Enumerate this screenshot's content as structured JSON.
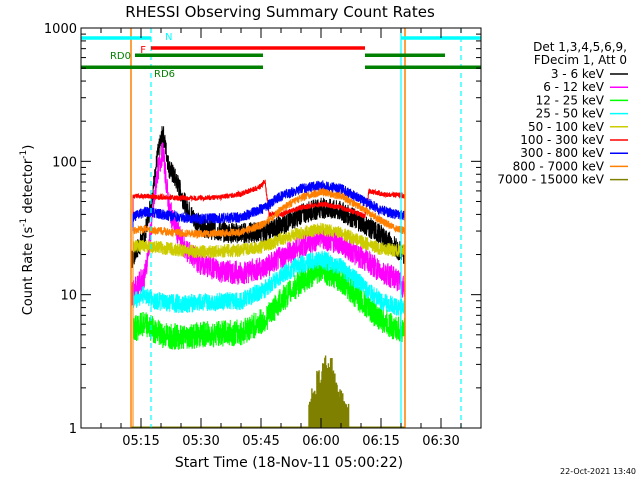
{
  "chart_data": {
    "type": "line",
    "title": "RHESSI Observing Summary Count Rates",
    "xlabel": "Start Time (18-Nov-11 05:00:22)",
    "ylabel_main": "Count Rate (s",
    "ylabel_sup": "-1",
    "ylabel_mid": " detector",
    "ylabel_end": ")",
    "yscale": "log",
    "ylim": [
      1,
      1000
    ],
    "xlim_min": [
      0,
      100
    ],
    "x_ticks": [
      {
        "min": 15,
        "label": "05:15"
      },
      {
        "min": 30,
        "label": "05:30"
      },
      {
        "min": 45,
        "label": "05:45"
      },
      {
        "min": 60,
        "label": "06:00"
      },
      {
        "min": 75,
        "label": "06:15"
      },
      {
        "min": 90,
        "label": "06:30"
      }
    ],
    "y_ticks": [
      {
        "value": 1,
        "label": "1"
      },
      {
        "value": 10,
        "label": "10"
      },
      {
        "value": 100,
        "label": "100"
      },
      {
        "value": 1000,
        "label": "1000"
      }
    ],
    "legend_header": [
      "Det 1,3,4,5,6,9,",
      "FDecim 1, Att 0"
    ],
    "series": [
      {
        "name": "3 - 6 keV",
        "color": "#000000",
        "noise": 0.08,
        "points": [
          [
            12.5,
            18
          ],
          [
            16,
            28
          ],
          [
            18,
            60
          ],
          [
            19,
            105
          ],
          [
            20.5,
            165
          ],
          [
            22,
            90
          ],
          [
            24,
            70
          ],
          [
            26,
            48
          ],
          [
            28,
            38
          ],
          [
            30,
            33
          ],
          [
            34,
            30
          ],
          [
            38,
            29
          ],
          [
            42,
            29
          ],
          [
            46,
            30
          ],
          [
            50,
            33
          ],
          [
            55,
            40
          ],
          [
            60,
            45
          ],
          [
            65,
            42
          ],
          [
            70,
            35
          ],
          [
            75,
            28
          ],
          [
            79,
            22
          ],
          [
            81,
            20
          ]
        ]
      },
      {
        "name": "6 - 12 keV",
        "color": "#ff00ff",
        "noise": 0.09,
        "points": [
          [
            12.5,
            10
          ],
          [
            16,
            14
          ],
          [
            18,
            40
          ],
          [
            19,
            80
          ],
          [
            20.5,
            120
          ],
          [
            22,
            45
          ],
          [
            24,
            30
          ],
          [
            26,
            22
          ],
          [
            30,
            17
          ],
          [
            35,
            15
          ],
          [
            40,
            14.5
          ],
          [
            46,
            16
          ],
          [
            50,
            19
          ],
          [
            55,
            23
          ],
          [
            60,
            27
          ],
          [
            65,
            24
          ],
          [
            70,
            19
          ],
          [
            75,
            15
          ],
          [
            79,
            13
          ],
          [
            81,
            11
          ]
        ]
      },
      {
        "name": "12 - 25 keV",
        "color": "#00ff00",
        "noise": 0.1,
        "points": [
          [
            13,
            5.5
          ],
          [
            16,
            6
          ],
          [
            18,
            5.5
          ],
          [
            20,
            5
          ],
          [
            25,
            4.8
          ],
          [
            30,
            5
          ],
          [
            40,
            5.2
          ],
          [
            46,
            6.5
          ],
          [
            50,
            9
          ],
          [
            55,
            12.5
          ],
          [
            60,
            15.5
          ],
          [
            65,
            13
          ],
          [
            70,
            9
          ],
          [
            75,
            6.5
          ],
          [
            79,
            5.5
          ],
          [
            81,
            5.5
          ]
        ]
      },
      {
        "name": "25 - 50 keV",
        "color": "#00ffff",
        "noise": 0.07,
        "points": [
          [
            13,
            9
          ],
          [
            16,
            10
          ],
          [
            18,
            9
          ],
          [
            20,
            8.8
          ],
          [
            25,
            8.5
          ],
          [
            30,
            8.7
          ],
          [
            40,
            9
          ],
          [
            46,
            11
          ],
          [
            50,
            14
          ],
          [
            55,
            17
          ],
          [
            60,
            18.5
          ],
          [
            65,
            16
          ],
          [
            70,
            12
          ],
          [
            75,
            9
          ],
          [
            79,
            8
          ],
          [
            81,
            8
          ]
        ]
      },
      {
        "name": "50 - 100 keV",
        "color": "#cccc00",
        "noise": 0.05,
        "points": [
          [
            13,
            23
          ],
          [
            16,
            23
          ],
          [
            20,
            22.5
          ],
          [
            25,
            21.5
          ],
          [
            30,
            21
          ],
          [
            40,
            21.5
          ],
          [
            46,
            23
          ],
          [
            50,
            26
          ],
          [
            55,
            29
          ],
          [
            60,
            31
          ],
          [
            65,
            29
          ],
          [
            70,
            25
          ],
          [
            75,
            22
          ],
          [
            79,
            21.5
          ],
          [
            81,
            21.5
          ]
        ]
      },
      {
        "name": "100 - 300 keV",
        "color": "#ff0000",
        "noise": 0.02,
        "points": [
          [
            13,
            55
          ],
          [
            16,
            55
          ],
          [
            20,
            54
          ],
          [
            25,
            53
          ],
          [
            30,
            53
          ],
          [
            35,
            54
          ],
          [
            40,
            57
          ],
          [
            45,
            65
          ],
          [
            46,
            72
          ],
          [
            47,
            40
          ],
          [
            50,
            40
          ],
          [
            55,
            45
          ],
          [
            60,
            48
          ],
          [
            65,
            45
          ],
          [
            70,
            40
          ],
          [
            71,
            39
          ],
          [
            72,
            60
          ],
          [
            75,
            57
          ],
          [
            79,
            56
          ],
          [
            81,
            55
          ]
        ]
      },
      {
        "name": "300 - 800 keV",
        "color": "#0000ff",
        "noise": 0.04,
        "points": [
          [
            13,
            38
          ],
          [
            16,
            42
          ],
          [
            20,
            40
          ],
          [
            25,
            38
          ],
          [
            30,
            37
          ],
          [
            40,
            38
          ],
          [
            46,
            45
          ],
          [
            50,
            55
          ],
          [
            55,
            62
          ],
          [
            60,
            66
          ],
          [
            65,
            62
          ],
          [
            70,
            52
          ],
          [
            75,
            43
          ],
          [
            79,
            40
          ],
          [
            81,
            39
          ]
        ]
      },
      {
        "name": "800 - 7000 keV",
        "color": "#ff8000",
        "noise": 0.03,
        "points": [
          [
            13,
            30
          ],
          [
            16,
            31
          ],
          [
            20,
            30
          ],
          [
            25,
            29
          ],
          [
            30,
            28.5
          ],
          [
            40,
            29.5
          ],
          [
            46,
            34
          ],
          [
            50,
            44
          ],
          [
            55,
            53
          ],
          [
            60,
            59
          ],
          [
            65,
            55
          ],
          [
            70,
            45
          ],
          [
            75,
            36
          ],
          [
            79,
            31
          ],
          [
            81,
            30
          ]
        ]
      },
      {
        "name": "7000 - 15000 keV",
        "color": "#808000",
        "noise": 0,
        "points": [
          [
            12.5,
            1
          ],
          [
            81,
            1
          ]
        ]
      }
    ],
    "flags": [
      {
        "name": "N",
        "color": "#00ffff",
        "y_frac": 0.025,
        "segments": [
          [
            0,
            17.5
          ],
          [
            80,
            100
          ]
        ]
      },
      {
        "name": "F",
        "color": "#ff0000",
        "y_frac": 0.05,
        "segments": [
          [
            17.5,
            71
          ]
        ]
      },
      {
        "name": "RD0",
        "color": "#008000",
        "y_frac": 0.068,
        "segments": [
          [
            13.5,
            45.5
          ],
          [
            71,
            91
          ]
        ]
      },
      {
        "name": "RD6",
        "color": "#008000",
        "y_frac": 0.098,
        "segments": [
          [
            0,
            45.5
          ],
          [
            71,
            100
          ]
        ]
      }
    ],
    "markers_cyan": [
      17.5,
      80,
      95
    ],
    "markers_orange": [
      12.5,
      81
    ],
    "stamp": "22-Oct-2021 13:40"
  }
}
